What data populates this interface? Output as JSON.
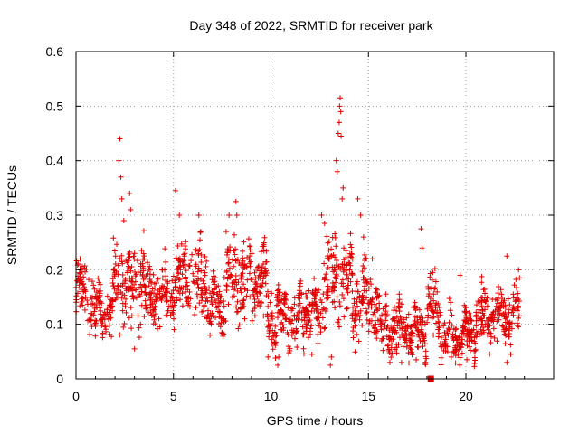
{
  "chart_data": {
    "type": "scatter",
    "title": "Day 348 of 2022, SRMTID for receiver park",
    "xlabel": "GPS time / hours",
    "ylabel": "SRMTID / TECUs",
    "xlim": [
      0,
      24.5
    ],
    "ylim": [
      0,
      0.6
    ],
    "xticks": [
      0,
      5,
      10,
      15,
      20
    ],
    "yticks": [
      0,
      0.1,
      0.2,
      0.3,
      0.4,
      0.5,
      0.6
    ],
    "xtick_labels": [
      "0",
      "5",
      "10",
      "15",
      "20"
    ],
    "ytick_labels": [
      "0",
      "0.1",
      "0.2",
      "0.3",
      "0.4",
      "0.5",
      "0.6"
    ],
    "grid": true,
    "marker": "+",
    "color": "#e00000",
    "points_per_hour": 80,
    "segments": [
      {
        "x0": 0.0,
        "x1": 0.7,
        "base": 0.16,
        "spread": 0.05
      },
      {
        "x0": 0.7,
        "x1": 1.9,
        "base": 0.12,
        "spread": 0.035
      },
      {
        "x0": 1.9,
        "x1": 3.5,
        "base": 0.18,
        "spread": 0.06
      },
      {
        "x0": 3.5,
        "x1": 5.0,
        "base": 0.15,
        "spread": 0.045
      },
      {
        "x0": 5.0,
        "x1": 6.7,
        "base": 0.18,
        "spread": 0.05
      },
      {
        "x0": 6.7,
        "x1": 7.6,
        "base": 0.13,
        "spread": 0.035
      },
      {
        "x0": 7.6,
        "x1": 9.8,
        "base": 0.18,
        "spread": 0.06
      },
      {
        "x0": 9.8,
        "x1": 11.5,
        "base": 0.11,
        "spread": 0.04
      },
      {
        "x0": 11.5,
        "x1": 12.6,
        "base": 0.12,
        "spread": 0.04
      },
      {
        "x0": 12.6,
        "x1": 14.2,
        "base": 0.18,
        "spread": 0.06
      },
      {
        "x0": 14.2,
        "x1": 15.6,
        "base": 0.14,
        "spread": 0.05
      },
      {
        "x0": 15.6,
        "x1": 18.0,
        "base": 0.09,
        "spread": 0.035
      },
      {
        "x0": 18.0,
        "x1": 18.7,
        "base": 0.13,
        "spread": 0.04
      },
      {
        "x0": 18.7,
        "x1": 20.5,
        "base": 0.08,
        "spread": 0.03
      },
      {
        "x0": 20.5,
        "x1": 22.8,
        "base": 0.12,
        "spread": 0.04
      }
    ],
    "spikes": [
      {
        "x": 2.25,
        "y": 0.44
      },
      {
        "x": 2.2,
        "y": 0.4
      },
      {
        "x": 2.3,
        "y": 0.37
      },
      {
        "x": 2.35,
        "y": 0.33
      },
      {
        "x": 2.45,
        "y": 0.29
      },
      {
        "x": 2.75,
        "y": 0.34
      },
      {
        "x": 2.8,
        "y": 0.31
      },
      {
        "x": 5.1,
        "y": 0.345
      },
      {
        "x": 5.3,
        "y": 0.3
      },
      {
        "x": 6.3,
        "y": 0.3
      },
      {
        "x": 6.4,
        "y": 0.27
      },
      {
        "x": 7.85,
        "y": 0.3
      },
      {
        "x": 8.2,
        "y": 0.325
      },
      {
        "x": 8.25,
        "y": 0.3
      },
      {
        "x": 7.7,
        "y": 0.27
      },
      {
        "x": 12.6,
        "y": 0.3
      },
      {
        "x": 12.75,
        "y": 0.285
      },
      {
        "x": 13.35,
        "y": 0.4
      },
      {
        "x": 13.4,
        "y": 0.38
      },
      {
        "x": 13.45,
        "y": 0.45
      },
      {
        "x": 13.5,
        "y": 0.47
      },
      {
        "x": 13.52,
        "y": 0.5
      },
      {
        "x": 13.55,
        "y": 0.515
      },
      {
        "x": 13.58,
        "y": 0.49
      },
      {
        "x": 13.6,
        "y": 0.445
      },
      {
        "x": 13.7,
        "y": 0.35
      },
      {
        "x": 13.65,
        "y": 0.33
      },
      {
        "x": 14.45,
        "y": 0.33
      },
      {
        "x": 14.6,
        "y": 0.3
      },
      {
        "x": 14.75,
        "y": 0.26
      },
      {
        "x": 15.2,
        "y": 0.22
      },
      {
        "x": 17.7,
        "y": 0.275
      },
      {
        "x": 17.75,
        "y": 0.24
      },
      {
        "x": 18.3,
        "y": 0.195
      },
      {
        "x": 19.7,
        "y": 0.19
      },
      {
        "x": 22.1,
        "y": 0.225
      },
      {
        "x": 22.7,
        "y": 0.2
      },
      {
        "x": 22.75,
        "y": 0.185
      }
    ],
    "lows": [
      {
        "x": 3.0,
        "y": 0.055
      },
      {
        "x": 10.35,
        "y": 0.025
      },
      {
        "x": 10.4,
        "y": 0.04
      },
      {
        "x": 12.1,
        "y": 0.045
      },
      {
        "x": 13.05,
        "y": 0.025
      },
      {
        "x": 13.1,
        "y": 0.04
      },
      {
        "x": 16.1,
        "y": 0.03
      },
      {
        "x": 16.7,
        "y": 0.03
      },
      {
        "x": 17.45,
        "y": 0.035
      },
      {
        "x": 19.25,
        "y": 0.04
      },
      {
        "x": 19.6,
        "y": 0.045
      },
      {
        "x": 20.05,
        "y": 0.035
      },
      {
        "x": 22.1,
        "y": 0.03
      },
      {
        "x": 22.3,
        "y": 0.045
      }
    ],
    "square_marker": {
      "x": 18.2,
      "y": 0.0
    }
  }
}
